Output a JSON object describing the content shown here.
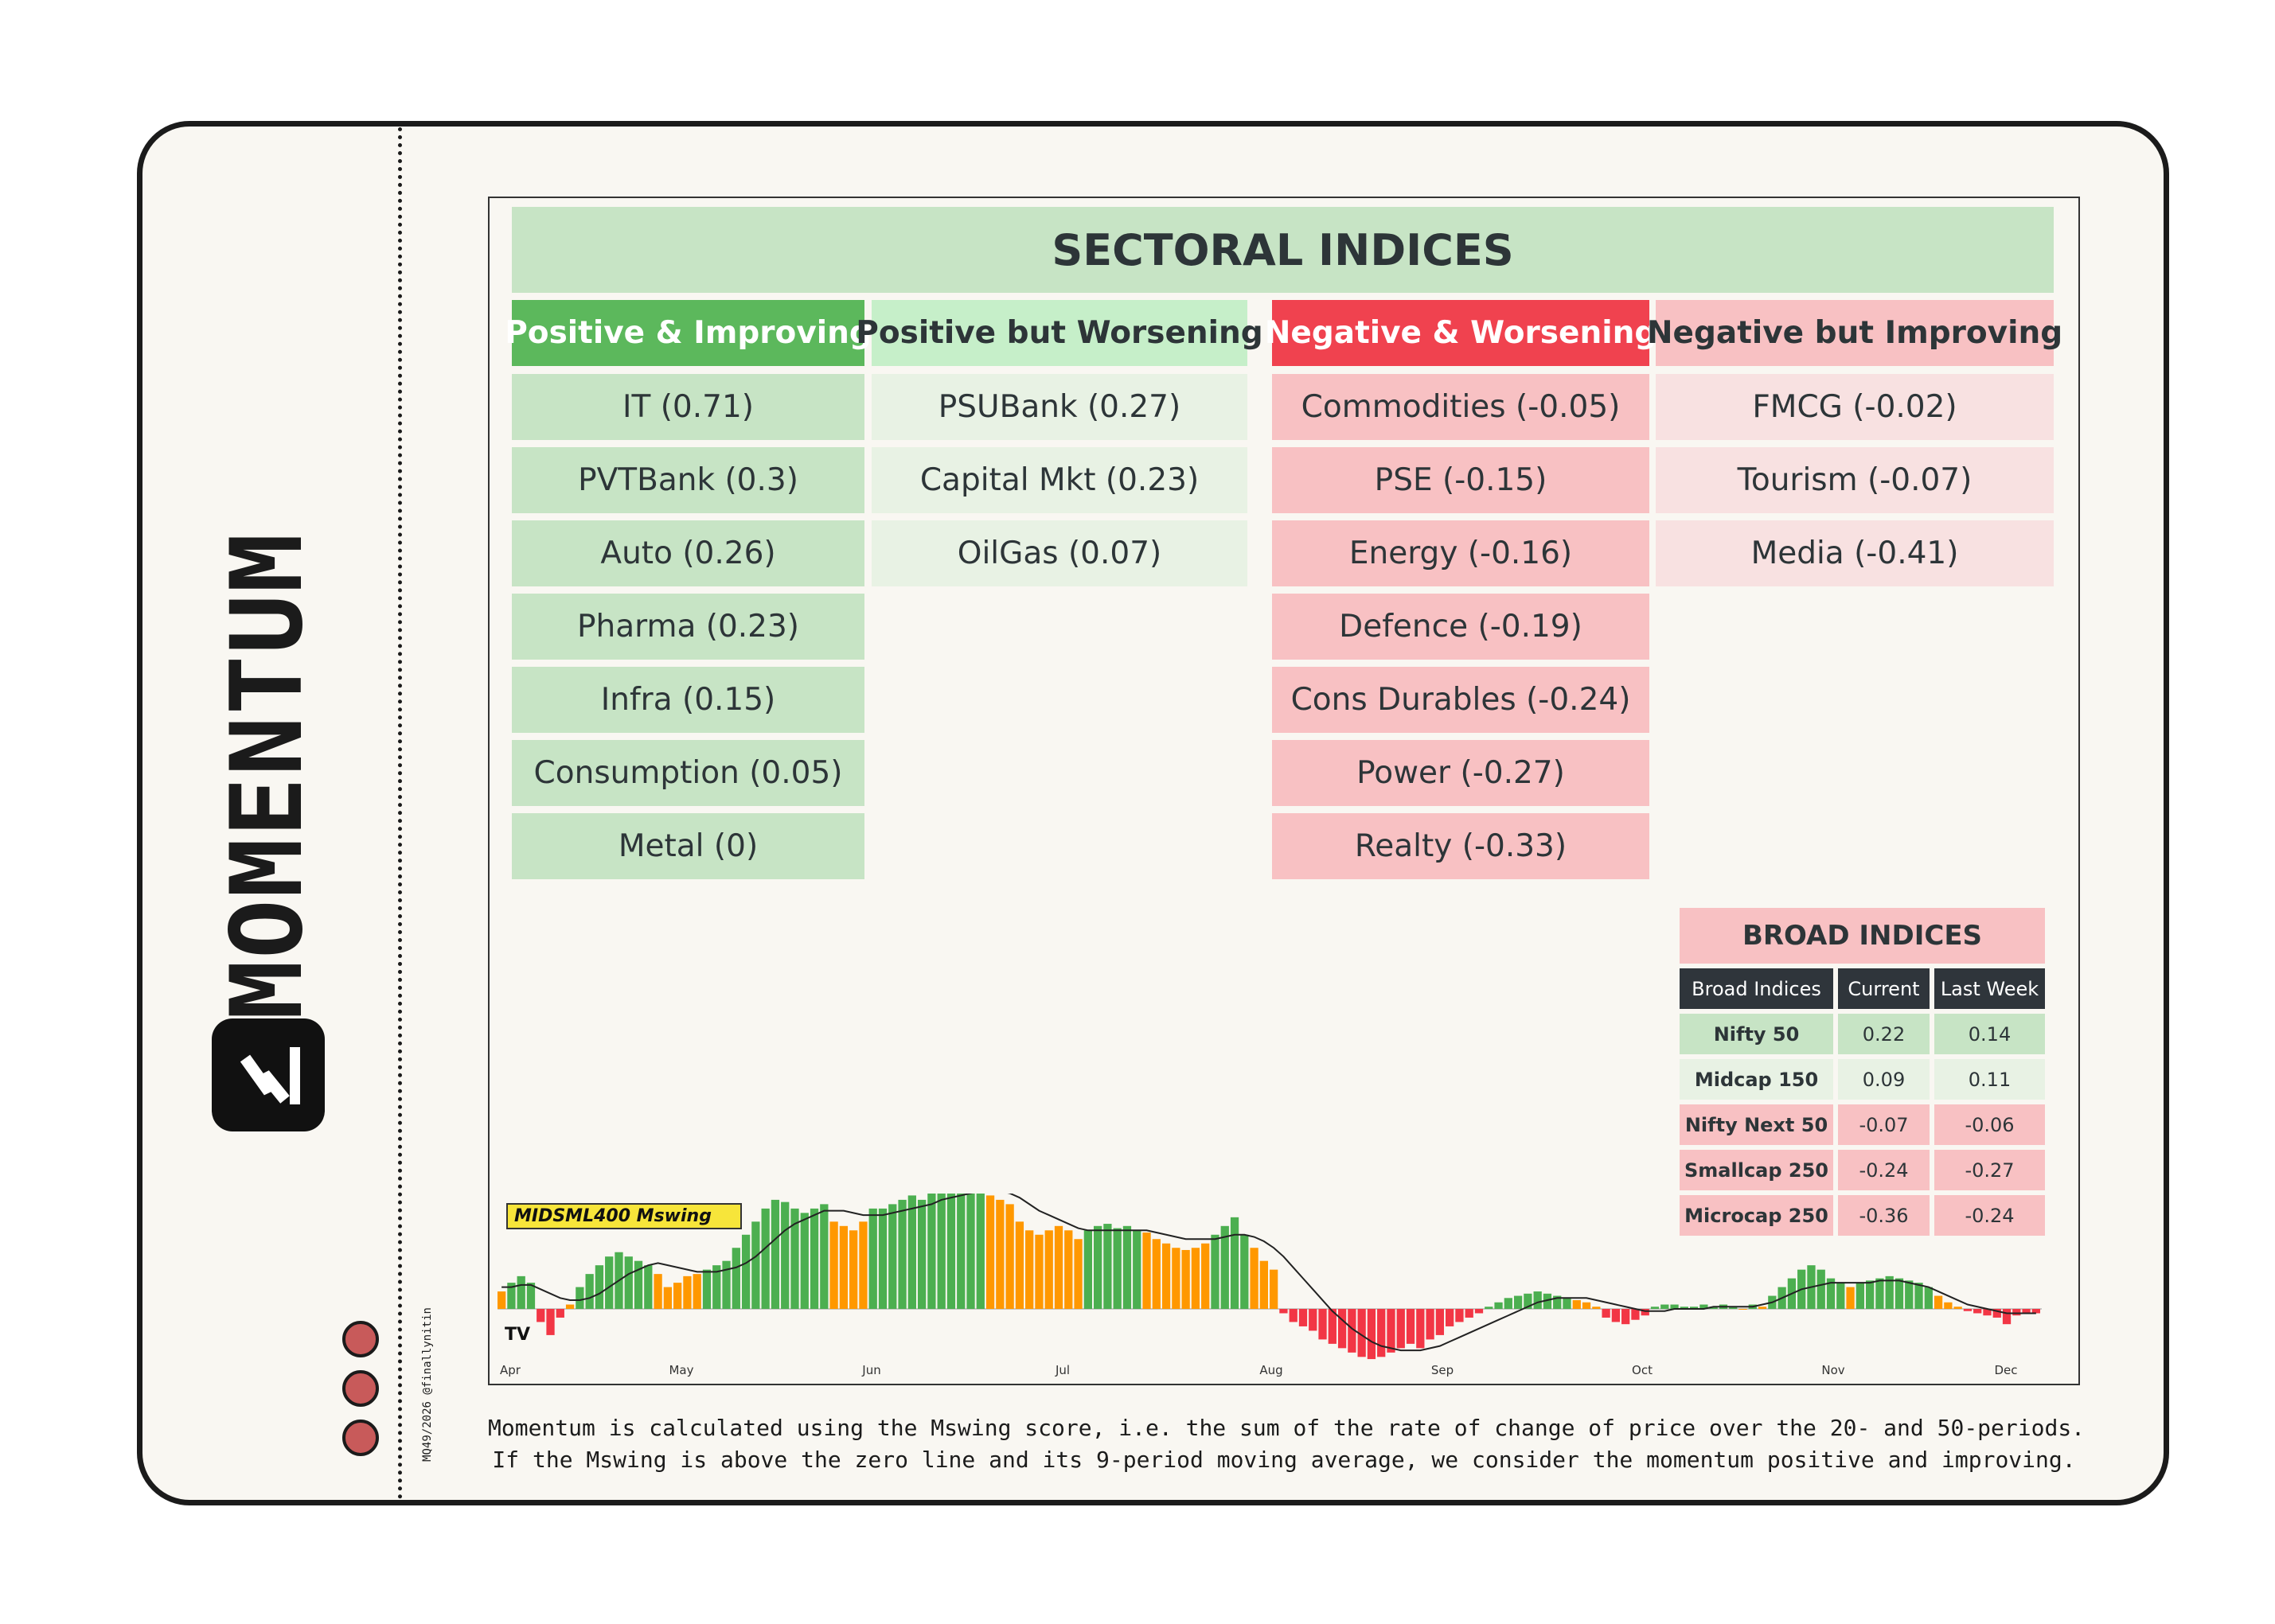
{
  "brand": {
    "name": "MOMENTUM",
    "credit": "MQ49/2026 @finallynitin"
  },
  "sectoral": {
    "title": "SECTORAL INDICES",
    "columns": [
      {
        "label": "Positive & Improving",
        "header_bg": "#5cb85c",
        "header_fg": "#ffffff",
        "cell_bg": "#c7e4c5",
        "items": [
          "IT (0.71)",
          "PVTBank (0.3)",
          "Auto (0.26)",
          "Pharma (0.23)",
          "Infra (0.15)",
          "Consumption (0.05)",
          "Metal (0)"
        ]
      },
      {
        "label": "Positive but Worsening",
        "header_bg": "#c6efc9",
        "header_fg": "#2d3538",
        "cell_bg": "#e8f2e4",
        "items": [
          "PSUBank (0.27)",
          "Capital Mkt (0.23)",
          "OilGas (0.07)"
        ]
      },
      {
        "label": "Negative & Worsening",
        "header_bg": "#f0424f",
        "header_fg": "#ffffff",
        "cell_bg": "#f8c1c3",
        "items": [
          "Commodities (-0.05)",
          "PSE (-0.15)",
          "Energy (-0.16)",
          "Defence (-0.19)",
          "Cons Durables (-0.24)",
          "Power (-0.27)",
          "Realty (-0.33)"
        ]
      },
      {
        "label": "Negative but Improving",
        "header_bg": "#f8c1c3",
        "header_fg": "#2d3538",
        "cell_bg": "#f8e1e1",
        "items": [
          "FMCG (-0.02)",
          "Tourism (-0.07)",
          "Media (-0.41)"
        ]
      }
    ]
  },
  "broad": {
    "title": "BROAD INDICES",
    "headers": [
      "Broad Indices",
      "Current",
      "Last Week"
    ],
    "rows": [
      {
        "name": "Nifty 50",
        "current": "0.22",
        "last_week": "0.14",
        "bg": "#c7e4c5"
      },
      {
        "name": "Midcap 150",
        "current": "0.09",
        "last_week": "0.11",
        "bg": "#e8f2e4"
      },
      {
        "name": "Nifty Next 50",
        "current": "-0.07",
        "last_week": "-0.06",
        "bg": "#f8c1c3"
      },
      {
        "name": "Smallcap 250",
        "current": "-0.24",
        "last_week": "-0.27",
        "bg": "#f8c1c3"
      },
      {
        "name": "Microcap 250",
        "current": "-0.36",
        "last_week": "-0.24",
        "bg": "#f8c1c3"
      }
    ]
  },
  "chart_data": {
    "type": "bar",
    "title": "MIDSML400 Mswing",
    "watermark": "TV",
    "months": [
      "Apr",
      "May",
      "Jun",
      "Jul",
      "Aug",
      "Sep",
      "Oct",
      "Nov",
      "Dec"
    ],
    "colors": {
      "positive_improving": "#4caf50",
      "positive_worsening": "#ff9800",
      "negative": "#f23645",
      "ma_line": "#222222"
    },
    "values": [
      0.08,
      0.12,
      0.15,
      0.12,
      -0.06,
      -0.12,
      -0.04,
      0.02,
      0.1,
      0.16,
      0.2,
      0.24,
      0.26,
      0.24,
      0.22,
      0.2,
      0.16,
      0.1,
      0.12,
      0.15,
      0.16,
      0.18,
      0.2,
      0.22,
      0.28,
      0.34,
      0.4,
      0.46,
      0.5,
      0.49,
      0.46,
      0.44,
      0.46,
      0.48,
      0.4,
      0.38,
      0.36,
      0.4,
      0.46,
      0.46,
      0.48,
      0.5,
      0.52,
      0.5,
      0.54,
      0.55,
      0.56,
      0.57,
      0.6,
      0.56,
      0.52,
      0.5,
      0.48,
      0.4,
      0.36,
      0.34,
      0.36,
      0.38,
      0.36,
      0.32,
      0.36,
      0.38,
      0.39,
      0.37,
      0.38,
      0.36,
      0.35,
      0.32,
      0.3,
      0.28,
      0.27,
      0.28,
      0.3,
      0.34,
      0.38,
      0.42,
      0.34,
      0.28,
      0.22,
      0.18,
      -0.02,
      -0.06,
      -0.08,
      -0.1,
      -0.14,
      -0.16,
      -0.18,
      -0.2,
      -0.22,
      -0.23,
      -0.22,
      -0.2,
      -0.18,
      -0.16,
      -0.18,
      -0.14,
      -0.12,
      -0.08,
      -0.06,
      -0.04,
      -0.02,
      0.01,
      0.03,
      0.05,
      0.06,
      0.07,
      0.08,
      0.07,
      0.06,
      0.05,
      0.04,
      0.03,
      0.01,
      -0.04,
      -0.06,
      -0.07,
      -0.05,
      -0.03,
      0.01,
      0.02,
      0.02,
      0.01,
      0.01,
      0.02,
      0.01,
      0.02,
      0.01,
      0.0,
      0.02,
      0.01,
      0.06,
      0.1,
      0.14,
      0.18,
      0.2,
      0.18,
      0.14,
      0.12,
      0.1,
      0.12,
      0.13,
      0.14,
      0.15,
      0.14,
      0.13,
      0.12,
      0.1,
      0.06,
      0.03,
      0.01,
      -0.01,
      -0.02,
      -0.03,
      -0.04,
      -0.07,
      -0.03,
      -0.02,
      -0.02
    ],
    "ma": [
      0.1,
      0.1,
      0.11,
      0.11,
      0.09,
      0.07,
      0.05,
      0.04,
      0.04,
      0.05,
      0.07,
      0.1,
      0.13,
      0.16,
      0.18,
      0.2,
      0.21,
      0.2,
      0.19,
      0.18,
      0.17,
      0.17,
      0.17,
      0.18,
      0.19,
      0.21,
      0.24,
      0.28,
      0.32,
      0.36,
      0.39,
      0.41,
      0.43,
      0.45,
      0.45,
      0.45,
      0.44,
      0.43,
      0.43,
      0.43,
      0.44,
      0.45,
      0.46,
      0.47,
      0.48,
      0.5,
      0.51,
      0.52,
      0.53,
      0.54,
      0.54,
      0.54,
      0.53,
      0.51,
      0.48,
      0.45,
      0.43,
      0.41,
      0.39,
      0.37,
      0.36,
      0.36,
      0.36,
      0.36,
      0.36,
      0.36,
      0.36,
      0.35,
      0.34,
      0.33,
      0.32,
      0.32,
      0.32,
      0.32,
      0.33,
      0.34,
      0.34,
      0.33,
      0.31,
      0.28,
      0.24,
      0.19,
      0.14,
      0.09,
      0.04,
      -0.01,
      -0.05,
      -0.09,
      -0.12,
      -0.15,
      -0.17,
      -0.18,
      -0.19,
      -0.19,
      -0.19,
      -0.18,
      -0.17,
      -0.15,
      -0.13,
      -0.11,
      -0.09,
      -0.07,
      -0.05,
      -0.03,
      -0.01,
      0.01,
      0.03,
      0.04,
      0.05,
      0.05,
      0.05,
      0.05,
      0.04,
      0.03,
      0.02,
      0.01,
      0.0,
      -0.01,
      -0.01,
      -0.01,
      0.0,
      0.0,
      0.0,
      0.0,
      0.01,
      0.01,
      0.01,
      0.01,
      0.01,
      0.02,
      0.03,
      0.05,
      0.07,
      0.09,
      0.1,
      0.11,
      0.12,
      0.12,
      0.12,
      0.12,
      0.12,
      0.13,
      0.13,
      0.13,
      0.12,
      0.11,
      0.1,
      0.08,
      0.06,
      0.04,
      0.02,
      0.01,
      0.0,
      -0.01,
      -0.02,
      -0.02,
      -0.02,
      -0.02
    ],
    "ylim": [
      -0.3,
      0.7
    ]
  },
  "footnote": {
    "line1": "Momentum is calculated using the Mswing score, i.e. the sum of the rate of change of price over the 20- and 50-periods.",
    "line2": "If the Mswing is above the zero line and its 9-period moving average, we consider the momentum positive and improving."
  }
}
